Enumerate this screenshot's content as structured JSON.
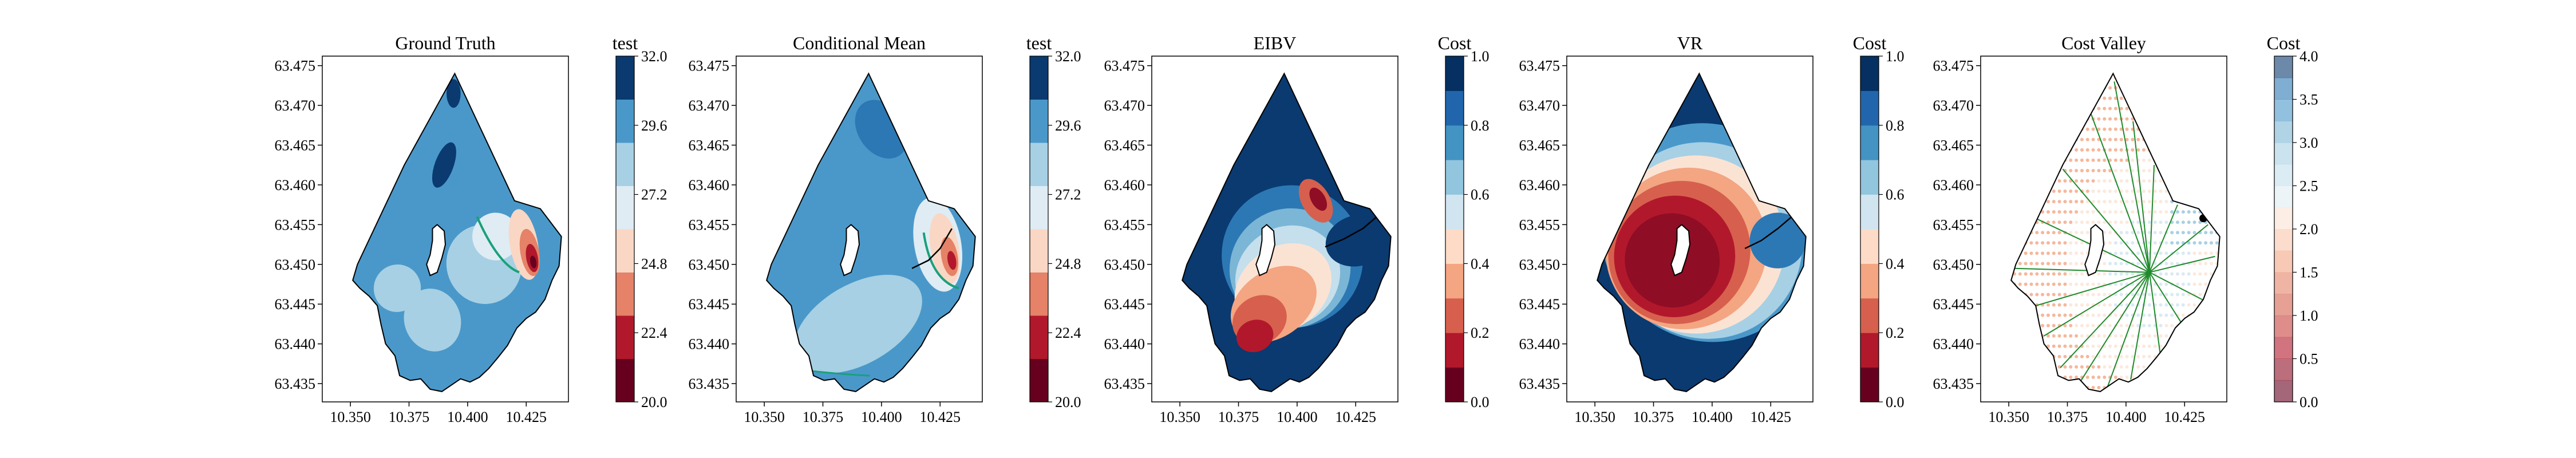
{
  "chart_data": [
    {
      "type": "contour",
      "title": "Ground Truth",
      "x_ticks": [
        "10.350",
        "10.375",
        "10.400",
        "10.425"
      ],
      "y_ticks": [
        "63.475",
        "63.470",
        "63.465",
        "63.460",
        "63.455",
        "63.450",
        "63.445",
        "63.440",
        "63.435"
      ],
      "xlim": [
        10.338,
        10.443
      ],
      "ylim": [
        63.4327,
        63.4762
      ],
      "colorbar": {
        "title": "test",
        "ticks": [
          "20.0",
          "22.4",
          "24.8",
          "27.2",
          "29.6",
          "32.0"
        ],
        "range": [
          20.0,
          32.0
        ],
        "colormap": "RdBu"
      }
    },
    {
      "type": "contour",
      "title": "Conditional Mean",
      "x_ticks": [
        "10.350",
        "10.375",
        "10.400",
        "10.425"
      ],
      "y_ticks": [
        "63.475",
        "63.470",
        "63.465",
        "63.460",
        "63.455",
        "63.450",
        "63.445",
        "63.440",
        "63.435"
      ],
      "xlim": [
        10.338,
        10.443
      ],
      "ylim": [
        63.4327,
        63.4762
      ],
      "colorbar": {
        "title": "test",
        "ticks": [
          "20.0",
          "22.4",
          "24.8",
          "27.2",
          "29.6",
          "32.0"
        ],
        "range": [
          20.0,
          32.0
        ],
        "colormap": "RdBu"
      }
    },
    {
      "type": "contour",
      "title": "EIBV",
      "x_ticks": [
        "10.350",
        "10.375",
        "10.400",
        "10.425"
      ],
      "y_ticks": [
        "63.475",
        "63.470",
        "63.465",
        "63.460",
        "63.455",
        "63.450",
        "63.445",
        "63.440",
        "63.435"
      ],
      "xlim": [
        10.338,
        10.443
      ],
      "ylim": [
        63.4327,
        63.4762
      ],
      "colorbar": {
        "title": "Cost",
        "ticks": [
          "0.0",
          "0.2",
          "0.4",
          "0.6",
          "0.8",
          "1.0"
        ],
        "range": [
          0.0,
          1.0
        ],
        "colormap": "RdBu"
      }
    },
    {
      "type": "contour",
      "title": "VR",
      "x_ticks": [
        "10.350",
        "10.375",
        "10.400",
        "10.425"
      ],
      "y_ticks": [
        "63.475",
        "63.470",
        "63.465",
        "63.460",
        "63.455",
        "63.450",
        "63.445",
        "63.440",
        "63.435"
      ],
      "xlim": [
        10.338,
        10.443
      ],
      "ylim": [
        63.4327,
        63.4762
      ],
      "colorbar": {
        "title": "Cost",
        "ticks": [
          "0.0",
          "0.2",
          "0.4",
          "0.6",
          "0.8",
          "1.0"
        ],
        "range": [
          0.0,
          1.0
        ],
        "colormap": "RdBu"
      }
    },
    {
      "type": "scatter",
      "title": "Cost Valley",
      "x_ticks": [
        "10.350",
        "10.375",
        "10.400",
        "10.425"
      ],
      "y_ticks": [
        "63.475",
        "63.470",
        "63.465",
        "63.460",
        "63.455",
        "63.450",
        "63.445",
        "63.440",
        "63.435"
      ],
      "xlim": [
        10.338,
        10.443
      ],
      "ylim": [
        63.4327,
        63.4762
      ],
      "colorbar": {
        "title": "Cost",
        "ticks": [
          "0.0",
          "0.5",
          "1.0",
          "1.5",
          "2.0",
          "2.5",
          "3.0",
          "3.5",
          "4.0"
        ],
        "range": [
          0.0,
          4.0
        ],
        "colormap": "RdBu"
      }
    }
  ]
}
